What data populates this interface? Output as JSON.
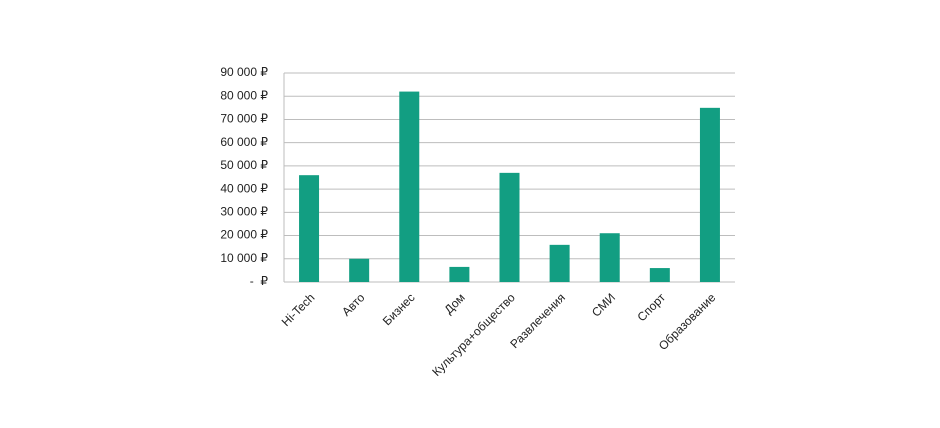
{
  "chart_data": {
    "type": "bar",
    "categories": [
      "Hi-Tech",
      "Авто",
      "Бизнес",
      "Дом",
      "Культура+общество",
      "Развлечения",
      "СМИ",
      "Спорт",
      "Образование"
    ],
    "values": [
      46000,
      10000,
      82000,
      6500,
      47000,
      16000,
      21000,
      6000,
      75000
    ],
    "color": "#129e82",
    "ylim": [
      0,
      90000
    ],
    "yticks": [
      {
        "value": 0,
        "label": "-  ₽"
      },
      {
        "value": 10000,
        "label": "10 000 ₽"
      },
      {
        "value": 20000,
        "label": "20 000 ₽"
      },
      {
        "value": 30000,
        "label": "30 000 ₽"
      },
      {
        "value": 40000,
        "label": "40 000 ₽"
      },
      {
        "value": 50000,
        "label": "50 000 ₽"
      },
      {
        "value": 60000,
        "label": "60 000 ₽"
      },
      {
        "value": 70000,
        "label": "70 000 ₽"
      },
      {
        "value": 80000,
        "label": "80 000 ₽"
      },
      {
        "value": 90000,
        "label": "90 000 ₽"
      }
    ],
    "grid": true
  }
}
